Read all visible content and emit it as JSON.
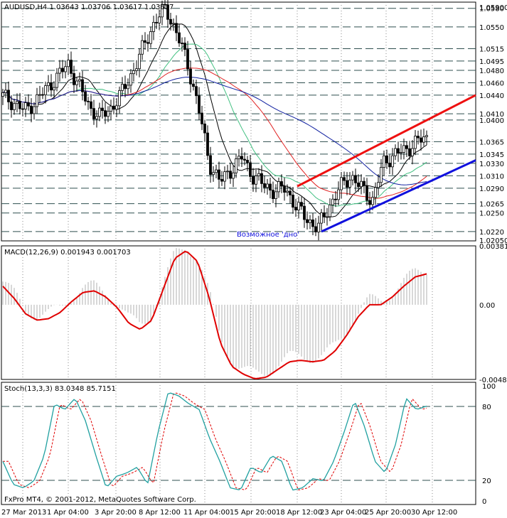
{
  "main": {
    "header": "AUDUSD,H4  1.03643 1.03706 1.03617 1.03637",
    "annotation": "Возможное 'дно'",
    "price_axis_top": "1.05900",
    "price_axis_bottom": "1.02050",
    "levels": [
      "1.0580",
      "1.0550",
      "1.0515",
      "1.0495",
      "1.0480",
      "1.0460",
      "1.0440",
      "1.0410",
      "1.0400",
      "1.0365",
      "1.0345",
      "1.0330",
      "1.0310",
      "1.0290",
      "1.0265",
      "1.0250",
      "1.0220"
    ],
    "highlight_levels": [
      "1.0580",
      "1.0220"
    ]
  },
  "macd": {
    "header": "MACD(12,26,9) 0.001943 0.001703",
    "ticks": [
      "0.003814",
      "0.00",
      "-0.00484"
    ]
  },
  "stoch": {
    "header": "Stoch(13,3,3) 83.0348 85.7151",
    "ticks": [
      "100",
      "80",
      "20",
      "0"
    ]
  },
  "footer": "FxPro MT4, © 2001-2012, MetaQuotes Software Corp.",
  "time_labels": [
    "27 Mar 2013",
    "1 Apr 04:00",
    "3 Apr 20:00",
    "8 Apr 12:00",
    "11 Apr 04:00",
    "15 Apr 20:00",
    "18 Apr 12:00",
    "23 Apr 04:00",
    "25 Apr 20:00",
    "30 Apr 12:00"
  ],
  "colors": {
    "up_candle": "#000000",
    "bull_body": "#ffffff",
    "macd_signal": "#e00000",
    "macd_hist": "#b0b0b0",
    "stoch_main": "#20a0a0",
    "stoch_signal": "#e00000",
    "ma_fast": "#000000",
    "ma_mid": "#40c080",
    "ma_slow": "#e02020",
    "ma_long": "#1020a0",
    "trend_red": "#ee1010",
    "trend_blue": "#1010dd"
  },
  "chart_data": [
    {
      "type": "candlestick",
      "symbol": "AUDUSD",
      "timeframe": "H4",
      "ylim": [
        1.0205,
        1.059
      ],
      "x": [
        "27 Mar 2013",
        "1 Apr 04:00",
        "3 Apr 20:00",
        "8 Apr 12:00",
        "11 Apr 04:00",
        "15 Apr 20:00",
        "18 Apr 12:00",
        "23 Apr 04:00",
        "25 Apr 20:00",
        "30 Apr 12:00"
      ],
      "close_path": [
        1.0438,
        1.0428,
        1.0415,
        1.043,
        1.045,
        1.047,
        1.049,
        1.0455,
        1.042,
        1.0405,
        1.042,
        1.0445,
        1.048,
        1.052,
        1.056,
        1.058,
        1.054,
        1.049,
        1.042,
        1.033,
        1.03,
        1.032,
        1.034,
        1.031,
        1.0295,
        1.0285,
        1.029,
        1.026,
        1.024,
        1.0225,
        1.026,
        1.029,
        1.031,
        1.029,
        1.027,
        1.033,
        1.0345,
        1.035,
        1.0365,
        1.037
      ],
      "trendlines": [
        {
          "color": "red",
          "from": [
            1.0293,
            "18 Apr 12:00"
          ],
          "to": [
            1.044,
            "after 30 Apr 12:00"
          ]
        },
        {
          "color": "blue",
          "from": [
            1.022,
            "23 Apr 04:00"
          ],
          "to": [
            1.0335,
            "after 30 Apr 12:00"
          ]
        }
      ]
    },
    {
      "type": "line",
      "name": "MACD(12,26,9)",
      "ylim": [
        -0.00484,
        0.003814
      ],
      "signal": [
        0.0012,
        0.0004,
        -0.0006,
        -0.001,
        -0.0009,
        -0.0005,
        0.0002,
        0.0008,
        0.0009,
        0.0005,
        -0.0002,
        -0.0012,
        -0.0016,
        -0.001,
        0.001,
        0.003,
        0.0035,
        0.0028,
        0.0005,
        -0.0025,
        -0.004,
        -0.0045,
        -0.0048,
        -0.0047,
        -0.0042,
        -0.0037,
        -0.0036,
        -0.0037,
        -0.0036,
        -0.003,
        -0.002,
        -0.0008,
        0.0,
        0.0,
        0.0005,
        0.0012,
        0.0018,
        0.002
      ]
    },
    {
      "type": "line",
      "name": "Stoch(13,3,3)",
      "ylim": [
        0,
        100
      ],
      "main": [
        35,
        15,
        12,
        18,
        40,
        85,
        80,
        90,
        70,
        40,
        12,
        22,
        25,
        30,
        15,
        60,
        95,
        92,
        85,
        80,
        55,
        35,
        12,
        10,
        30,
        25,
        40,
        35,
        10,
        12,
        20,
        18,
        35,
        60,
        88,
        65,
        35,
        25,
        50,
        90,
        80,
        83
      ]
    }
  ]
}
